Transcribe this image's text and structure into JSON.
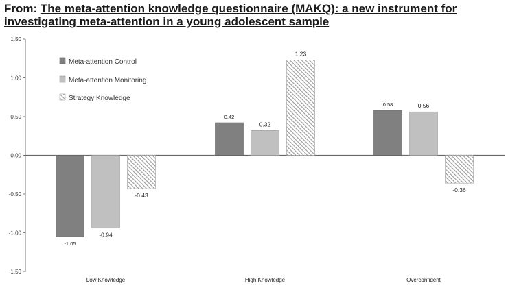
{
  "header": {
    "prefix": "From:",
    "title": "The meta-attention knowledge questionnaire (MAKQ): a new instrument for investigating meta-attention in a young adolescent sample"
  },
  "colors": {
    "control": "#808080",
    "monitoring": "#c0c0c0",
    "strategy_stripe": "#9a9a9a",
    "axis": "#7a7a7a"
  },
  "chart_data": {
    "type": "bar",
    "title": "",
    "xlabel": "",
    "ylabel": "",
    "ylim": [
      -1.5,
      1.5
    ],
    "yticks": [
      "1.50",
      "1.00",
      "0.50",
      "0.00",
      "-0.50",
      "-1.00",
      "-1.50"
    ],
    "categories": [
      "Low Knowledge",
      "High Knowledge",
      "Overconfident"
    ],
    "legend_position": "top-left",
    "series": [
      {
        "name": "Meta-attention Control",
        "values": [
          -1.05,
          0.42,
          0.58
        ],
        "labels": [
          "-1.05",
          "0.42",
          "0.58"
        ]
      },
      {
        "name": "Meta-attention Monitoring",
        "values": [
          -0.94,
          0.32,
          0.56
        ],
        "labels": [
          "-0.94",
          "0.32",
          "0.56"
        ]
      },
      {
        "name": "Strategy Knowledge",
        "values": [
          -0.43,
          1.23,
          -0.36
        ],
        "labels": [
          "-0.43",
          "1.23",
          "-0.36"
        ]
      }
    ]
  }
}
